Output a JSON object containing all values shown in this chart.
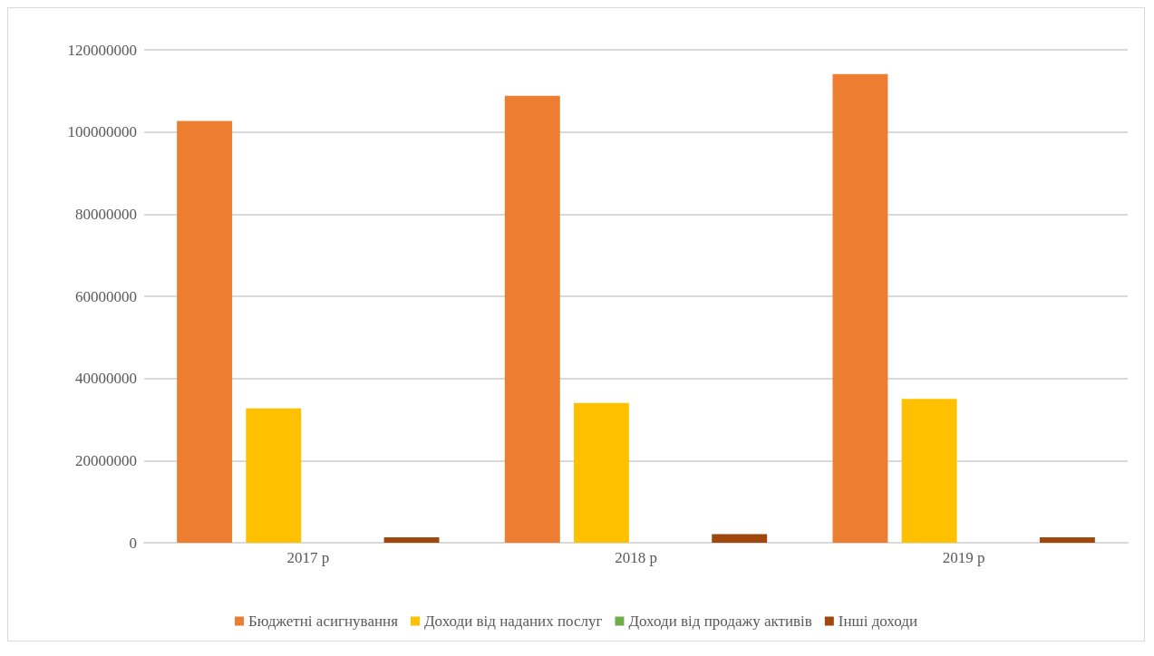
{
  "chart_data": {
    "type": "bar",
    "categories": [
      "2017 р",
      "2018 р",
      "2019 р"
    ],
    "series": [
      {
        "name": "Бюджетні асигнування",
        "color": "#ed7d31",
        "values": [
          102700000,
          108800000,
          114100000
        ]
      },
      {
        "name": "Доходи від наданих послуг",
        "color": "#ffc000",
        "values": [
          32700000,
          34000000,
          35000000
        ]
      },
      {
        "name": "Доходи від продажу активів",
        "color": "#70ad47",
        "values": [
          0,
          0,
          0
        ]
      },
      {
        "name": "Інші доходи",
        "color": "#9e480e",
        "values": [
          1300000,
          2100000,
          1300000
        ]
      }
    ],
    "ylim": [
      0,
      120000000
    ],
    "yticks": [
      0,
      20000000,
      40000000,
      60000000,
      80000000,
      100000000,
      120000000
    ],
    "grid": "y",
    "legend": "bottom"
  }
}
